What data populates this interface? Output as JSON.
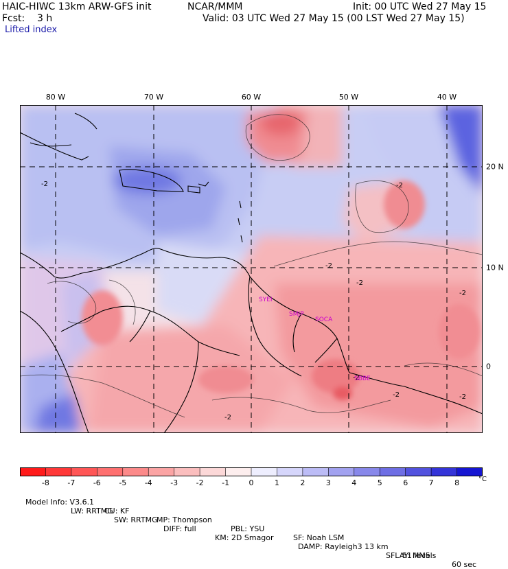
{
  "header": {
    "title_left": "HAIC-HIWC 13km ARW-GFS init",
    "title_center": "NCAR/MMM",
    "init": "Init: 00 UTC Wed 27 May 15",
    "fcst": "Fcst:    3 h",
    "valid": "Valid: 03 UTC Wed 27 May 15 (00 LST Wed 27 May 15)",
    "field": "Lifted index"
  },
  "map": {
    "lon_labels": [
      "80 W",
      "70 W",
      "60 W",
      "50 W",
      "40 W"
    ],
    "lat_labels": [
      "20 N",
      "10 N",
      "0"
    ],
    "stations": [
      "SYEI",
      "SMJP",
      "SOCA",
      "SBBE"
    ],
    "contour_labels": [
      "-2",
      "-2",
      "-2",
      "-2",
      "-2",
      "-2",
      "-2",
      "-2",
      "-2"
    ],
    "colors": {
      "neg_strong": "#ff0000",
      "pos_strong": "#0000dd",
      "station": "#cc00cc"
    }
  },
  "colorbar": {
    "ticks": [
      "-8",
      "-7",
      "-6",
      "-5",
      "-4",
      "-3",
      "-2",
      "-1",
      "0",
      "1",
      "2",
      "3",
      "4",
      "5",
      "6",
      "7",
      "8"
    ],
    "unit": "°C",
    "colors": [
      "#ff1a1a",
      "#ff3838",
      "#ff5656",
      "#fe7070",
      "#fc8a8a",
      "#fba4a4",
      "#fbbebe",
      "#fcd8d8",
      "#fdeeee",
      "#eeeefe",
      "#d6d6fb",
      "#bcbcf6",
      "#a2a2f0",
      "#8888ea",
      "#6e6ee4",
      "#5252de",
      "#3434d8",
      "#1616d2"
    ]
  },
  "footer": {
    "line1": [
      "Model Info: V3.6.1",
      "CU: KF",
      "MP: Thompson",
      "PBL: YSU",
      "SF: Noah LSM",
      "13 km",
      "51 levels",
      "60 sec"
    ],
    "line2": [
      "LW: RRTMG",
      "SW: RRTMG",
      "DIFF: full",
      "KM: 2D Smagor",
      "DAMP: Rayleigh3",
      "SFLAY: MM5"
    ]
  }
}
